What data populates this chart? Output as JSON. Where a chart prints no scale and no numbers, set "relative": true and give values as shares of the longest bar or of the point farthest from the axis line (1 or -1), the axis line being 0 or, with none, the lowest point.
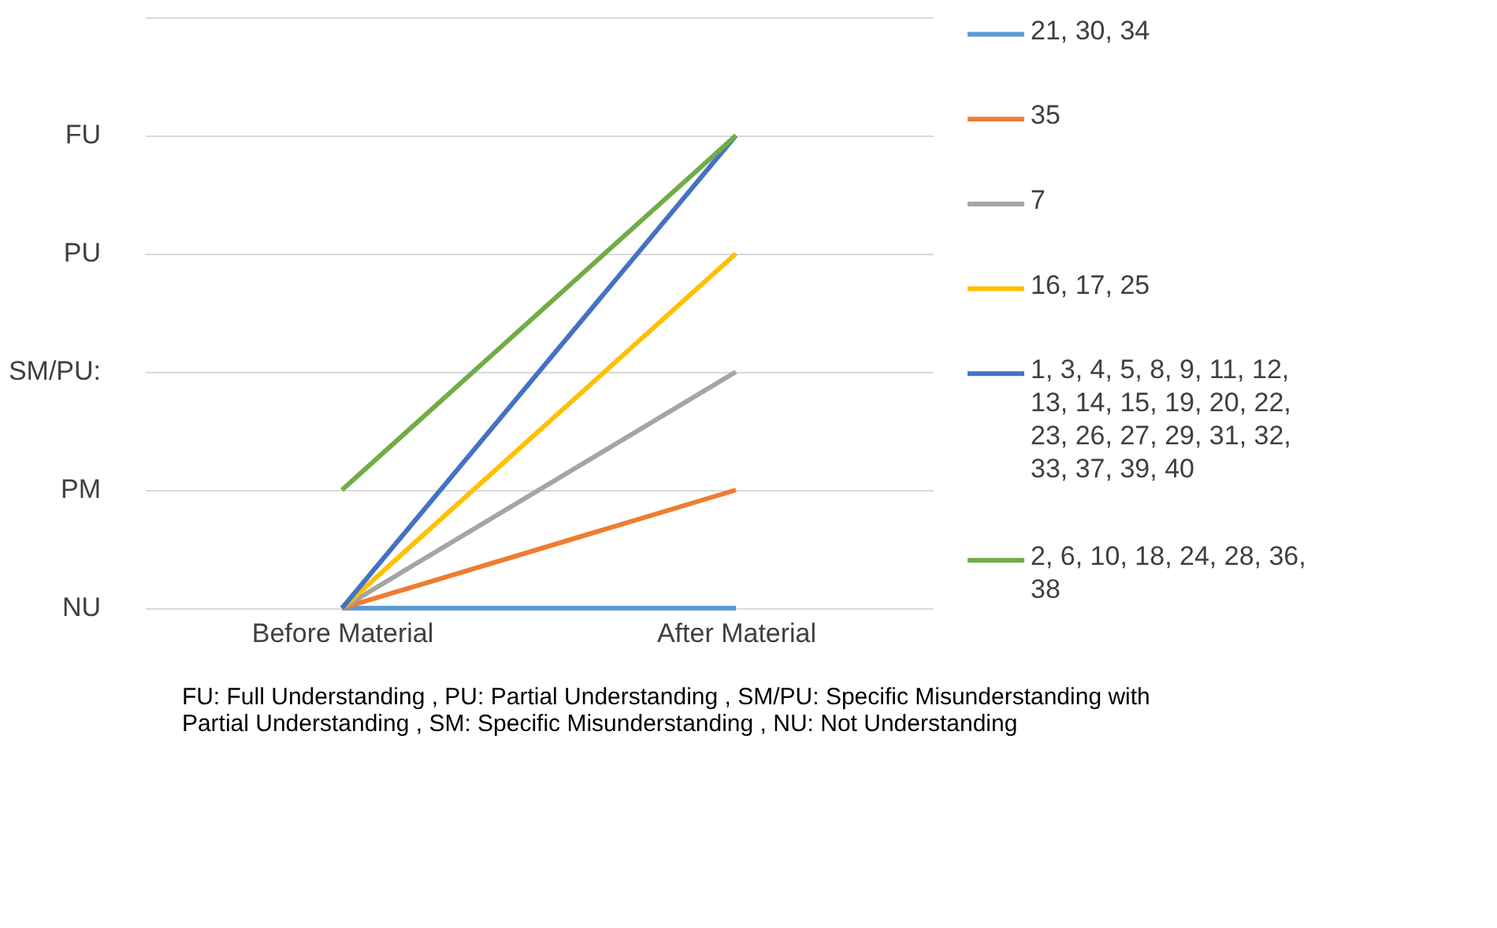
{
  "chart_data": {
    "type": "line",
    "categories": [
      "Before Material",
      "After Material"
    ],
    "series": [
      {
        "name": "21, 30, 34",
        "color": "#5b9bd5",
        "values": [
          0,
          0
        ]
      },
      {
        "name": "35",
        "color": "#ed7d31",
        "values": [
          0,
          0.25
        ]
      },
      {
        "name": "7",
        "color": "#a5a5a5",
        "values": [
          0,
          0.5
        ]
      },
      {
        "name": "16, 17, 25",
        "color": "#ffc000",
        "values": [
          0,
          0.75
        ]
      },
      {
        "name": "1, 3, 4, 5, 8, 9, 11, 12, 13, 14, 15, 19, 20, 22, 23, 26, 27, 29, 31, 32, 33, 37, 39, 40",
        "color": "#4472c4",
        "values": [
          0,
          1
        ]
      },
      {
        "name": "2, 6, 10, 18, 24, 28, 36, 38",
        "color": "#70ad47",
        "values": [
          0.25,
          1
        ]
      }
    ],
    "relative": true,
    "grid": "y",
    "legend": "right",
    "marker": "none",
    "line_style": "solid",
    "annotations": [
      "NU",
      "PM",
      "SM/PU:",
      "PU",
      "FU",
      "FU: Full Understanding , PU: Partial Understanding , SM/PU: Specific Misunderstanding with Partial Understanding , SM: Specific Misunderstanding , NU: Not Understanding"
    ]
  }
}
